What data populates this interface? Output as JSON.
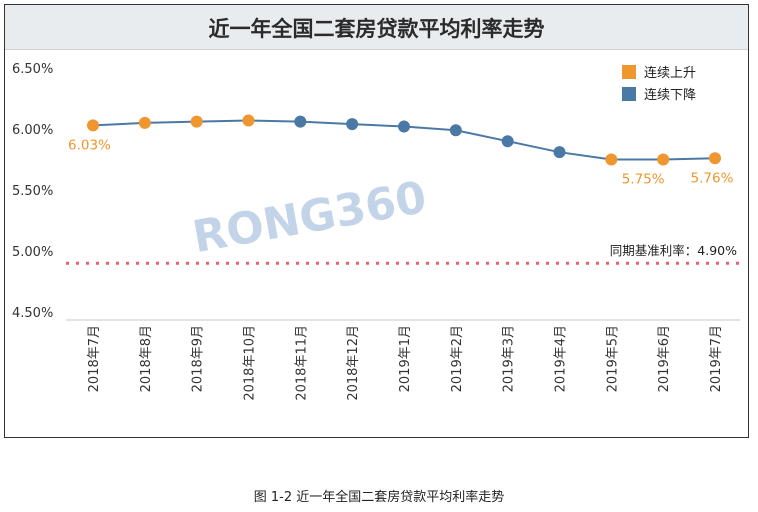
{
  "chart_data": {
    "type": "line",
    "title": "近一年全国二套房贷款平均利率走势",
    "caption": "图 1-2  近一年全国二套房贷款平均利率走势",
    "categories": [
      "2018年7月",
      "2018年8月",
      "2018年9月",
      "2018年10月",
      "2018年11月",
      "2018年12月",
      "2019年1月",
      "2019年2月",
      "2019年3月",
      "2019年4月",
      "2019年5月",
      "2019年6月",
      "2019年7月"
    ],
    "values": [
      6.03,
      6.05,
      6.06,
      6.07,
      6.06,
      6.04,
      6.02,
      5.99,
      5.9,
      5.81,
      5.75,
      5.75,
      5.76
    ],
    "point_trend": [
      "up",
      "up",
      "up",
      "up",
      "down",
      "down",
      "down",
      "down",
      "down",
      "down",
      "up",
      "up",
      "up"
    ],
    "y_ticks": [
      "6.50%",
      "6.00%",
      "5.50%",
      "5.00%",
      "4.50%"
    ],
    "ylim": [
      4.5,
      6.5
    ],
    "legend": [
      {
        "label": "连续上升",
        "color": "#f0962e"
      },
      {
        "label": "连续下降",
        "color": "#4a79a5"
      }
    ],
    "legend_position": "top-right",
    "data_labels": [
      {
        "index": 0,
        "text": "6.03%"
      },
      {
        "index": 11,
        "text": "5.75%"
      },
      {
        "index": 12,
        "text": "5.76%"
      }
    ],
    "reference_line": {
      "value": 4.9,
      "label": "同期基准利率：4.90%",
      "color": "#e8616b"
    },
    "watermark": "RONG360",
    "colors": {
      "up": "#f0962e",
      "down": "#4a79a5",
      "line": "#4a79a5",
      "reference": "#e8616b"
    }
  }
}
